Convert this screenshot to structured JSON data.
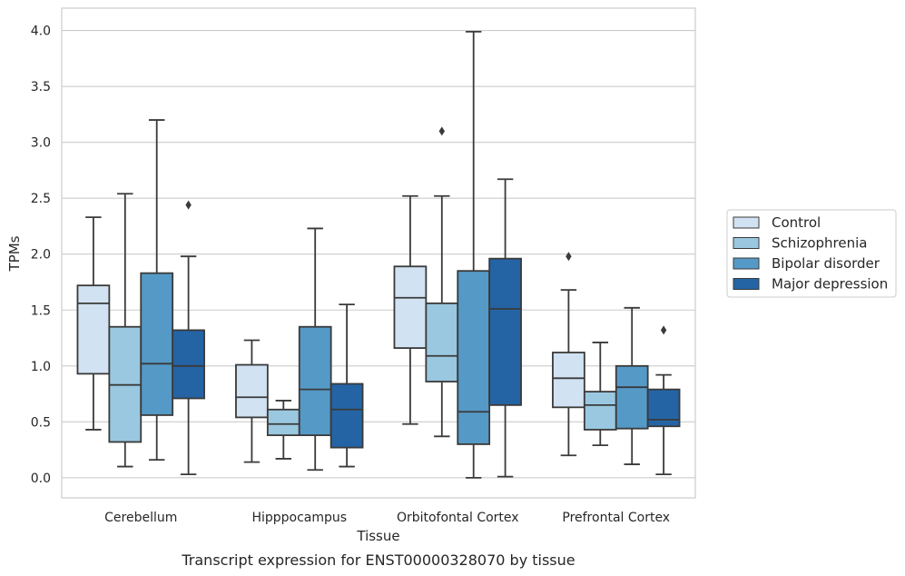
{
  "caption": "Transcript expression for ENST00000328070 by tissue",
  "chart_data": {
    "type": "box",
    "xlabel": "Tissue",
    "ylabel": "TPMs",
    "ylim": [
      -0.18,
      4.2
    ],
    "yticks": [
      "0.0",
      "0.5",
      "1.0",
      "1.5",
      "2.0",
      "2.5",
      "3.0",
      "3.5",
      "4.0"
    ],
    "grid": true,
    "legend_position": "right",
    "categories": [
      "Cerebellum",
      "Hipppocampus",
      "Orbitofontal Cortex",
      "Prefrontal Cortex"
    ],
    "series": [
      {
        "name": "Control",
        "color": "#d1e2f2",
        "boxes": [
          {
            "whislo": 0.43,
            "q1": 0.93,
            "med": 1.56,
            "q3": 1.72,
            "whishi": 2.33,
            "fliers": []
          },
          {
            "whislo": 0.14,
            "q1": 0.54,
            "med": 0.72,
            "q3": 1.01,
            "whishi": 1.23,
            "fliers": []
          },
          {
            "whislo": 0.48,
            "q1": 1.16,
            "med": 1.61,
            "q3": 1.89,
            "whishi": 2.52,
            "fliers": []
          },
          {
            "whislo": 0.2,
            "q1": 0.63,
            "med": 0.89,
            "q3": 1.12,
            "whishi": 1.68,
            "fliers": [
              1.98
            ]
          }
        ]
      },
      {
        "name": "Schizophrenia",
        "color": "#9ac8e0",
        "boxes": [
          {
            "whislo": 0.1,
            "q1": 0.32,
            "med": 0.83,
            "q3": 1.35,
            "whishi": 2.54,
            "fliers": []
          },
          {
            "whislo": 0.17,
            "q1": 0.38,
            "med": 0.48,
            "q3": 0.61,
            "whishi": 0.69,
            "fliers": []
          },
          {
            "whislo": 0.37,
            "q1": 0.86,
            "med": 1.09,
            "q3": 1.56,
            "whishi": 2.52,
            "fliers": [
              3.1
            ]
          },
          {
            "whislo": 0.29,
            "q1": 0.43,
            "med": 0.65,
            "q3": 0.77,
            "whishi": 1.21,
            "fliers": []
          }
        ]
      },
      {
        "name": "Bipolar disorder",
        "color": "#5599c6",
        "boxes": [
          {
            "whislo": 0.16,
            "q1": 0.56,
            "med": 1.02,
            "q3": 1.83,
            "whishi": 3.2,
            "fliers": []
          },
          {
            "whislo": 0.07,
            "q1": 0.38,
            "med": 0.79,
            "q3": 1.35,
            "whishi": 2.23,
            "fliers": []
          },
          {
            "whislo": 0.0,
            "q1": 0.3,
            "med": 0.59,
            "q3": 1.85,
            "whishi": 3.99,
            "fliers": []
          },
          {
            "whislo": 0.12,
            "q1": 0.44,
            "med": 0.81,
            "q3": 1.0,
            "whishi": 1.52,
            "fliers": []
          }
        ]
      },
      {
        "name": "Major depression",
        "color": "#2464a5",
        "boxes": [
          {
            "whislo": 0.03,
            "q1": 0.71,
            "med": 1.0,
            "q3": 1.32,
            "whishi": 1.98,
            "fliers": [
              2.44
            ]
          },
          {
            "whislo": 0.1,
            "q1": 0.27,
            "med": 0.61,
            "q3": 0.84,
            "whishi": 1.55,
            "fliers": []
          },
          {
            "whislo": 0.01,
            "q1": 0.65,
            "med": 1.51,
            "q3": 1.96,
            "whishi": 2.67,
            "fliers": []
          },
          {
            "whislo": 0.03,
            "q1": 0.46,
            "med": 0.52,
            "q3": 0.79,
            "whishi": 0.92,
            "fliers": [
              1.32
            ]
          }
        ]
      }
    ]
  }
}
